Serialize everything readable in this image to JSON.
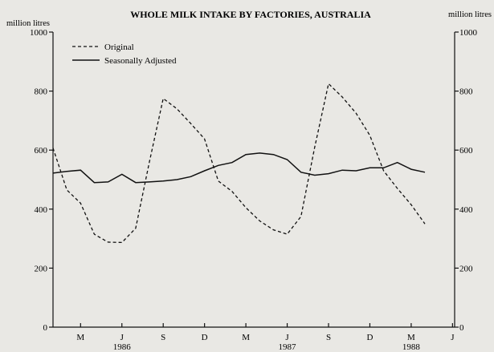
{
  "chart_data": {
    "type": "line",
    "title": "WHOLE MILK INTAKE BY FACTORIES, AUSTRALIA",
    "y_unit_left": "million litres",
    "y_unit_right": "million litres",
    "ylim": [
      0,
      1000
    ],
    "yticks": [
      0,
      200,
      400,
      600,
      800,
      1000
    ],
    "month_ticks": [
      {
        "label": "M",
        "month": "1986-03"
      },
      {
        "label": "J",
        "month": "1986-06"
      },
      {
        "label": "S",
        "month": "1986-09"
      },
      {
        "label": "D",
        "month": "1986-12"
      },
      {
        "label": "M",
        "month": "1987-03"
      },
      {
        "label": "J",
        "month": "1987-06"
      },
      {
        "label": "S",
        "month": "1987-09"
      },
      {
        "label": "D",
        "month": "1987-12"
      },
      {
        "label": "M",
        "month": "1988-03"
      },
      {
        "label": "J",
        "month": "1988-06"
      }
    ],
    "year_labels": [
      {
        "label": "1986",
        "month": "1986-06"
      },
      {
        "label": "1987",
        "month": "1987-06"
      },
      {
        "label": "1988",
        "month": "1988-03"
      }
    ],
    "x": [
      "1986-01",
      "1986-02",
      "1986-03",
      "1986-04",
      "1986-05",
      "1986-06",
      "1986-07",
      "1986-08",
      "1986-09",
      "1986-10",
      "1986-11",
      "1986-12",
      "1987-01",
      "1987-02",
      "1987-03",
      "1987-04",
      "1987-05",
      "1987-06",
      "1987-07",
      "1987-08",
      "1987-09",
      "1987-10",
      "1987-11",
      "1987-12",
      "1988-01",
      "1988-02",
      "1988-03",
      "1988-04"
    ],
    "series": [
      {
        "name": "Original",
        "style": "dashed",
        "values": [
          607,
          465,
          420,
          315,
          288,
          287,
          335,
          560,
          775,
          740,
          690,
          638,
          495,
          460,
          405,
          360,
          330,
          315,
          375,
          610,
          825,
          780,
          725,
          650,
          530,
          470,
          415,
          350
        ]
      },
      {
        "name": "Seasonally Adjusted",
        "style": "solid",
        "values": [
          522,
          528,
          532,
          490,
          492,
          518,
          490,
          492,
          495,
          500,
          510,
          530,
          548,
          558,
          585,
          590,
          585,
          568,
          525,
          515,
          520,
          532,
          530,
          540,
          540,
          558,
          535,
          525
        ]
      }
    ]
  }
}
